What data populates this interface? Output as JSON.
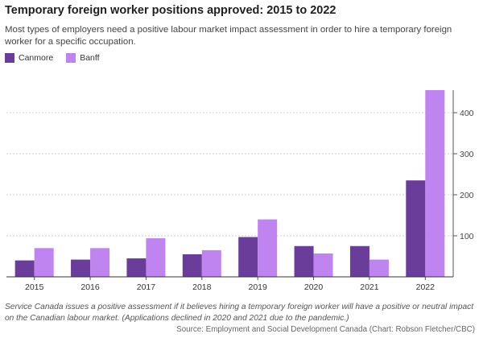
{
  "chart_data": {
    "type": "bar",
    "title": "Temporary foreign worker positions approved: 2015 to 2022",
    "subtitle": "Most types of employers need a positive labour market impact assessment in order to hire a temporary foreign worker for a specific occupation.",
    "categories": [
      "2015",
      "2016",
      "2017",
      "2018",
      "2019",
      "2020",
      "2021",
      "2022"
    ],
    "series": [
      {
        "name": "Canmore",
        "color": "#6a3d9a",
        "values": [
          40,
          42,
          45,
          55,
          97,
          75,
          75,
          235
        ]
      },
      {
        "name": "Banff",
        "color": "#c084f0",
        "values": [
          70,
          70,
          94,
          65,
          140,
          57,
          42,
          455
        ]
      }
    ],
    "ylim": [
      0,
      455
    ],
    "yticks": [
      100,
      200,
      300,
      400
    ],
    "grid": true,
    "y_axis_side": "right",
    "legend_position": "top-left"
  },
  "note": "Service Canada issues a positive assessment if it believes hiring a temporary foreign worker will have a positive or neutral impact on the Canadian labour market. (Applications declined in 2020 and 2021 due to the pandemic.)",
  "source": "Source: Employment and Social Development Canada (Chart: Robson Fletcher/CBC)"
}
